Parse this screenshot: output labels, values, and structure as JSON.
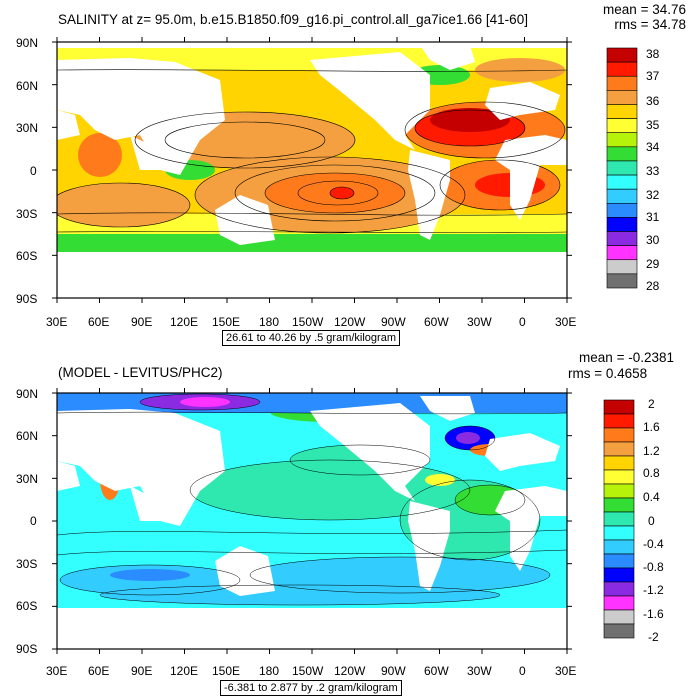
{
  "panels": [
    {
      "title": "SALINITY at z=  95.0m, b.e15.B1850.f09_g16.pi_control.all_ga7ice1.66 [41-60]",
      "mean_label": "mean = 34.76",
      "rms_label": "rms = 34.78",
      "range_label": "26.61 to 40.26 by .5 gram/kilogram",
      "lat_labels": [
        "90N",
        "60N",
        "30N",
        "0",
        "30S",
        "60S",
        "90S"
      ],
      "lon_labels": [
        "30E",
        "60E",
        "90E",
        "120E",
        "150E",
        "180",
        "150W",
        "120W",
        "90W",
        "60W",
        "30W",
        "0",
        "30E"
      ],
      "colorbar_labels": [
        "38",
        "37",
        "36",
        "35",
        "34",
        "33",
        "32",
        "31",
        "30",
        "29",
        "28"
      ],
      "colorbar_colors": [
        "#c40000",
        "#ff1a00",
        "#ff7a1a",
        "#f5a040",
        "#ffd400",
        "#ffff33",
        "#b7f20a",
        "#33dd33",
        "#2ee8b0",
        "#33ffff",
        "#33ccff",
        "#2a8cff",
        "#0000ff",
        "#8a2be2",
        "#ff33ff",
        "#cccccc",
        "#707070"
      ]
    },
    {
      "title": "(MODEL - LEVITUS/PHC2)",
      "mean_label": "mean = -0.2381",
      "rms_label": "rms = 0.4658",
      "range_label": "-6.381 to 2.877 by .2 gram/kilogram",
      "lat_labels": [
        "90N",
        "60N",
        "30N",
        "0",
        "30S",
        "60S",
        "90S"
      ],
      "lon_labels": [
        "30E",
        "60E",
        "90E",
        "120E",
        "150E",
        "180",
        "150W",
        "120W",
        "90W",
        "60W",
        "30W",
        "0",
        "30E"
      ],
      "colorbar_labels": [
        "2",
        "1.6",
        "1.2",
        "0.8",
        "0.4",
        "0",
        "-0.4",
        "-0.8",
        "-1.2",
        "-1.6",
        "-2"
      ],
      "colorbar_colors": [
        "#c40000",
        "#ff1a00",
        "#ff7a1a",
        "#f5a040",
        "#ffd400",
        "#ffff33",
        "#b7f20a",
        "#33dd33",
        "#2ee8b0",
        "#33ffff",
        "#33ccff",
        "#2a8cff",
        "#0000ff",
        "#8a2be2",
        "#ff33ff",
        "#cccccc",
        "#707070"
      ]
    }
  ]
}
